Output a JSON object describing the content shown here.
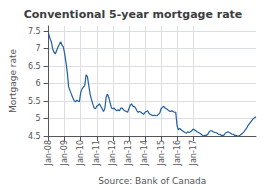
{
  "chart_data": {
    "type": "line",
    "title": "Conventional 5-year mortgage rate",
    "x_label": "Source: Bank of Canada",
    "y_label": "Mortgage rate",
    "color": "#2060a0",
    "grid": true,
    "ylim": [
      4.5,
      7.65
    ],
    "yticks": [
      4.5,
      5,
      5.5,
      6,
      6.5,
      7,
      7.5
    ],
    "categories": [
      "Jan-08",
      null,
      null,
      null,
      null,
      null,
      null,
      null,
      null,
      null,
      null,
      null,
      "Jan-09",
      null,
      null,
      null,
      null,
      null,
      null,
      null,
      null,
      null,
      null,
      null,
      "Jan-10",
      null,
      null,
      null,
      null,
      null,
      null,
      null,
      null,
      null,
      null,
      null,
      "Jan-11",
      null,
      null,
      null,
      null,
      null,
      null,
      null,
      null,
      null,
      null,
      null,
      "Jan-12",
      null,
      null,
      null,
      null,
      null,
      null,
      null,
      null,
      null,
      null,
      null,
      "Jan-13",
      null,
      null,
      null,
      null,
      null,
      null,
      null,
      null,
      null,
      null,
      null,
      "Jan-14",
      null,
      null,
      null,
      null,
      null,
      null,
      null,
      null,
      null,
      null,
      null,
      "Jan-15",
      null,
      null,
      null,
      null,
      null,
      null,
      null,
      null,
      null,
      null,
      null,
      "Jan-16",
      null,
      null,
      null,
      null,
      null,
      null,
      null,
      null,
      null,
      null,
      null,
      "Jan-17",
      null,
      null,
      null,
      null,
      null,
      null,
      null,
      null,
      null,
      null,
      null,
      null,
      null,
      null,
      null,
      null,
      null,
      null,
      null,
      null,
      null,
      null,
      null,
      null,
      null,
      null,
      null,
      null,
      null,
      null,
      null,
      null,
      null,
      null,
      null,
      null,
      null,
      null,
      null,
      null,
      null,
      null,
      null,
      null,
      null,
      null,
      null
    ],
    "values": [
      7.44,
      7.3,
      7.2,
      7.0,
      6.9,
      6.85,
      6.95,
      7.05,
      7.12,
      7.2,
      7.1,
      7.05,
      6.85,
      6.6,
      6.3,
      5.9,
      5.8,
      5.7,
      5.6,
      5.52,
      5.48,
      5.52,
      5.5,
      5.48,
      5.75,
      5.85,
      5.9,
      5.95,
      6.25,
      6.2,
      5.95,
      5.7,
      5.55,
      5.42,
      5.3,
      5.28,
      5.35,
      5.38,
      5.42,
      5.35,
      5.28,
      5.2,
      5.28,
      5.62,
      5.7,
      5.6,
      5.45,
      5.3,
      5.28,
      5.3,
      5.25,
      5.22,
      5.25,
      5.22,
      5.3,
      5.3,
      5.25,
      5.22,
      5.2,
      5.18,
      5.28,
      5.38,
      5.42,
      5.35,
      5.35,
      5.3,
      5.22,
      5.18,
      5.2,
      5.18,
      5.15,
      5.12,
      5.18,
      5.2,
      5.22,
      5.15,
      5.12,
      5.1,
      5.08,
      5.1,
      5.08,
      5.08,
      5.12,
      5.15,
      5.28,
      5.32,
      5.35,
      5.3,
      5.28,
      5.25,
      5.22,
      5.2,
      5.22,
      5.2,
      5.18,
      5.18,
      4.8,
      4.68,
      4.72,
      4.68,
      4.65,
      4.62,
      4.6,
      4.58,
      4.62,
      4.6,
      4.62,
      4.65,
      4.7,
      4.68,
      4.65,
      4.62,
      4.6,
      4.58,
      4.55,
      4.52,
      4.5,
      4.52,
      4.52,
      4.55,
      4.62,
      4.65,
      4.65,
      4.62,
      4.6,
      4.6,
      4.58,
      4.55,
      4.55,
      4.52,
      4.52,
      4.52,
      4.58,
      4.6,
      4.62,
      4.6,
      4.58,
      4.55,
      4.55,
      4.52,
      4.52,
      4.5,
      4.5,
      4.52,
      4.55,
      4.58,
      4.62,
      4.68,
      4.72,
      4.8,
      4.85,
      4.9,
      4.95,
      5.0,
      5.02,
      5.05
    ]
  }
}
